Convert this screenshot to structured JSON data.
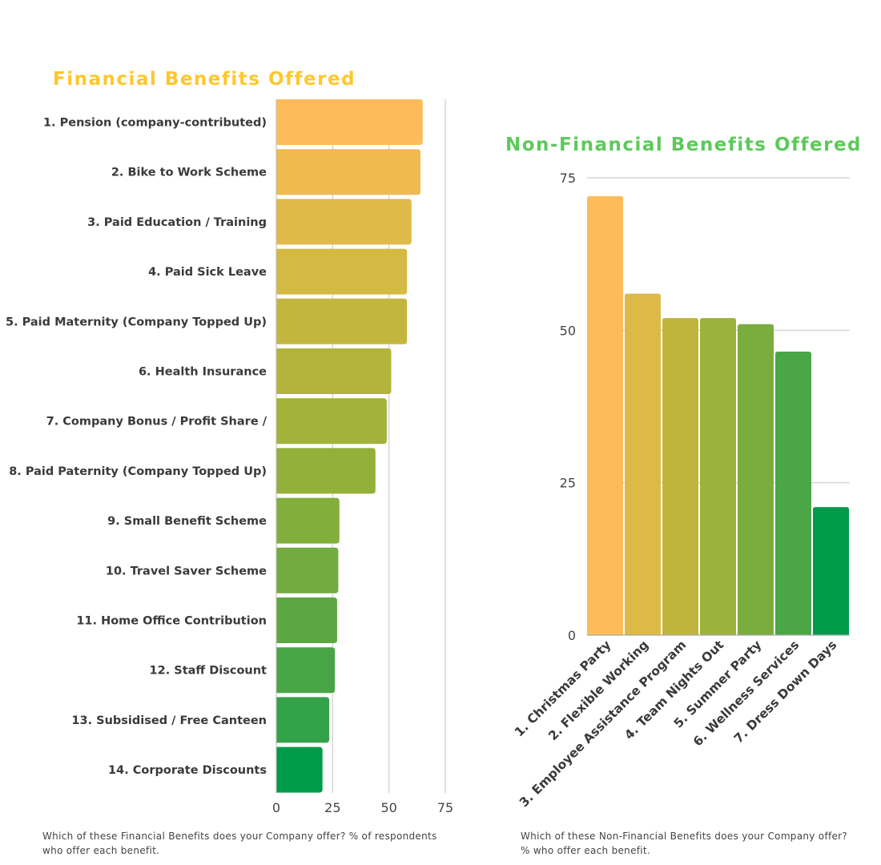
{
  "chart_data": [
    {
      "type": "bar",
      "orientation": "horizontal",
      "title": "Financial Benefits Offered",
      "title_color": "#FFC72C",
      "caption": "Which of these Financial Benefits does your Company offer? % of respondents who offer each benefit.",
      "categories": [
        "1. Pension (company-contributed)",
        "2. Bike to Work Scheme",
        "3. Paid Education / Training",
        "4. Paid Sick Leave",
        "5. Paid Maternity (Company Topped Up)",
        "6. Health Insurance",
        "7. Company Bonus / Profit Share /",
        "8. Paid Paternity (Company Topped Up)",
        "9. Small Benefit Scheme",
        "10. Travel Saver Scheme",
        "11. Home Office Contribution",
        "12. Staff Discount",
        "13. Subsidised / Free Canteen",
        "14. Corporate Discounts"
      ],
      "values": [
        65,
        64,
        60,
        58,
        58,
        51,
        49,
        44,
        28,
        27.5,
        27,
        26,
        23.5,
        20.5
      ],
      "colors": [
        "#FDBC5A",
        "#EFBA4E",
        "#E0BA48",
        "#D4B942",
        "#C3B63E",
        "#B2B43C",
        "#A2B23A",
        "#93B03A",
        "#82AE3C",
        "#72AB3F",
        "#5BA843",
        "#48A546",
        "#33A249",
        "#009B4A"
      ],
      "xlim": [
        0,
        75
      ],
      "xticks": [
        "0",
        "25",
        "50",
        "75"
      ],
      "grid": true
    },
    {
      "type": "bar",
      "orientation": "vertical",
      "title": "Non-Financial Benefits Offered",
      "title_color": "#5DC95B",
      "caption": "Which of these Non-Financial Benefits does your Company offer? % who offer each benefit.",
      "categories": [
        "1. Christmas Party",
        "2. Flexible Working",
        "3. Employee Assistance Program",
        "4. Team Nights Out",
        "5. Summer Party",
        "6. Wellness Services",
        "7. Dress Down Days"
      ],
      "values": [
        72,
        56,
        52,
        52,
        51,
        46.5,
        21
      ],
      "colors": [
        "#FDBC5A",
        "#DDBA48",
        "#BFB53D",
        "#9BB33A",
        "#7AAD3E",
        "#4BA646",
        "#009B4A"
      ],
      "ylim": [
        0,
        75
      ],
      "yticks": [
        "0",
        "25",
        "50",
        "75"
      ],
      "grid": true
    }
  ]
}
